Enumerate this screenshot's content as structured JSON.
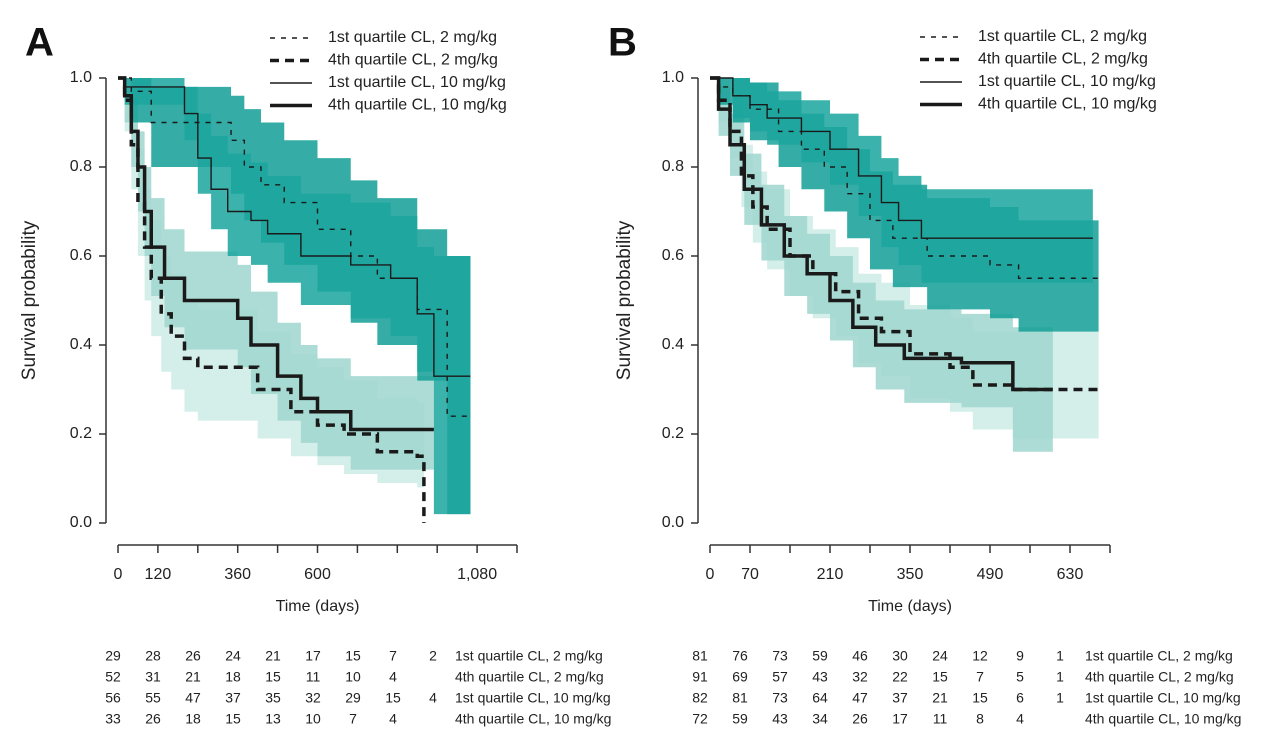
{
  "chart_data": [
    {
      "type": "line",
      "label": "A",
      "x_label": "Time (days)",
      "y_label": "Survival probability",
      "step": true,
      "xlim": [
        0,
        1200
      ],
      "ylim": [
        0,
        1
      ],
      "xticks": [
        0,
        120,
        360,
        600,
        {
          "value": 1080,
          "label": "1,080"
        }
      ],
      "minor_xticks": [
        240,
        480,
        720,
        840,
        960,
        1200
      ],
      "yticks": [
        {
          "value": 0,
          "label": "0.0"
        },
        0.2,
        0.4,
        0.6,
        0.8,
        {
          "value": 1,
          "label": "1.0"
        }
      ],
      "series": [
        {
          "name": "1st quartile CL, 2 mg/kg",
          "color": "#1a1a1a",
          "band_color": "#129f97",
          "dashed": true,
          "bold": false,
          "x": [
            0,
            40,
            100,
            340,
            380,
            430,
            500,
            600,
            700,
            780,
            900,
            990,
            1060
          ],
          "values": [
            1,
            0.97,
            0.9,
            0.86,
            0.8,
            0.76,
            0.72,
            0.66,
            0.6,
            0.55,
            0.48,
            0.24,
            0.24
          ],
          "lower": [
            1,
            0.9,
            0.8,
            0.74,
            0.68,
            0.63,
            0.58,
            0.52,
            0.45,
            0.4,
            0.32,
            0.02,
            0.02
          ],
          "upper": [
            1,
            1,
            0.98,
            0.96,
            0.93,
            0.9,
            0.86,
            0.82,
            0.77,
            0.73,
            0.66,
            0.6,
            0.6
          ]
        },
        {
          "name": "4th quartile CL, 2 mg/kg",
          "color": "#1a1a1a",
          "band_color": "#cdebe6",
          "dashed": true,
          "bold": true,
          "x": [
            0,
            20,
            40,
            60,
            80,
            100,
            130,
            160,
            200,
            240,
            420,
            520,
            600,
            680,
            780,
            900,
            920
          ],
          "values": [
            1,
            0.95,
            0.85,
            0.72,
            0.62,
            0.55,
            0.47,
            0.42,
            0.37,
            0.35,
            0.3,
            0.25,
            0.22,
            0.2,
            0.16,
            0.15,
            0
          ],
          "lower": [
            1,
            0.88,
            0.75,
            0.6,
            0.5,
            0.42,
            0.34,
            0.3,
            0.25,
            0.23,
            0.19,
            0.15,
            0.13,
            0.11,
            0.09,
            0.08,
            0
          ],
          "upper": [
            1,
            1,
            0.94,
            0.84,
            0.75,
            0.68,
            0.6,
            0.56,
            0.5,
            0.48,
            0.43,
            0.38,
            0.35,
            0.32,
            0.28,
            0.27,
            0
          ]
        },
        {
          "name": "1st quartile CL, 10 mg/kg",
          "color": "#1a1a1a",
          "band_color": "#1aa59d",
          "dashed": false,
          "bold": false,
          "x": [
            0,
            20,
            180,
            200,
            240,
            280,
            330,
            400,
            450,
            550,
            700,
            820,
            900,
            950,
            1060
          ],
          "values": [
            1,
            0.98,
            0.98,
            0.92,
            0.82,
            0.75,
            0.7,
            0.68,
            0.65,
            0.6,
            0.58,
            0.55,
            0.47,
            0.33,
            0.33
          ],
          "lower": [
            1,
            0.94,
            0.94,
            0.86,
            0.74,
            0.66,
            0.6,
            0.58,
            0.54,
            0.49,
            0.46,
            0.42,
            0.34,
            0.02,
            0.02
          ],
          "upper": [
            1,
            1,
            1,
            0.98,
            0.92,
            0.87,
            0.83,
            0.81,
            0.78,
            0.74,
            0.72,
            0.69,
            0.62,
            0.6,
            0.6
          ]
        },
        {
          "name": "4th quartile CL, 10 mg/kg",
          "color": "#1a1a1a",
          "band_color": "#9dd6ce",
          "dashed": false,
          "bold": true,
          "x": [
            0,
            20,
            40,
            60,
            80,
            100,
            140,
            200,
            360,
            400,
            480,
            550,
            600,
            700,
            950
          ],
          "values": [
            1,
            0.96,
            0.88,
            0.8,
            0.7,
            0.62,
            0.55,
            0.5,
            0.46,
            0.4,
            0.33,
            0.28,
            0.25,
            0.21,
            0.21
          ],
          "lower": [
            1,
            0.9,
            0.8,
            0.7,
            0.6,
            0.51,
            0.44,
            0.39,
            0.35,
            0.29,
            0.23,
            0.18,
            0.15,
            0.12,
            0.12
          ],
          "upper": [
            1,
            1,
            0.95,
            0.88,
            0.8,
            0.73,
            0.66,
            0.61,
            0.58,
            0.52,
            0.45,
            0.4,
            0.37,
            0.33,
            0.33
          ]
        }
      ],
      "risk_table": [
        [
          29,
          28,
          26,
          24,
          21,
          17,
          15,
          7,
          2
        ],
        [
          52,
          31,
          21,
          18,
          15,
          11,
          10,
          4,
          null
        ],
        [
          56,
          55,
          47,
          37,
          35,
          32,
          29,
          15,
          4
        ],
        [
          33,
          26,
          18,
          15,
          13,
          10,
          7,
          4,
          null
        ]
      ]
    },
    {
      "type": "line",
      "label": "B",
      "x_label": "Time (days)",
      "y_label": "Survival probability",
      "step": true,
      "xlim": [
        0,
        700
      ],
      "ylim": [
        0,
        1
      ],
      "xticks": [
        0,
        70,
        210,
        350,
        490,
        630
      ],
      "minor_xticks": [
        140,
        280,
        420,
        560,
        700
      ],
      "yticks": [
        {
          "value": 0,
          "label": "0.0"
        },
        0.2,
        0.4,
        0.6,
        0.8,
        {
          "value": 1,
          "label": "1.0"
        }
      ],
      "series": [
        {
          "name": "1st quartile CL, 2 mg/kg",
          "color": "#1a1a1a",
          "band_color": "#129f97",
          "dashed": true,
          "bold": false,
          "x": [
            0,
            15,
            40,
            70,
            120,
            160,
            200,
            240,
            280,
            320,
            380,
            490,
            540,
            680
          ],
          "values": [
            1,
            0.98,
            0.96,
            0.93,
            0.88,
            0.84,
            0.8,
            0.74,
            0.68,
            0.64,
            0.6,
            0.58,
            0.55,
            0.55
          ],
          "lower": [
            1,
            0.94,
            0.9,
            0.86,
            0.8,
            0.75,
            0.7,
            0.64,
            0.57,
            0.53,
            0.48,
            0.46,
            0.43,
            0.43
          ],
          "upper": [
            1,
            1,
            1,
            0.99,
            0.95,
            0.92,
            0.89,
            0.84,
            0.79,
            0.76,
            0.73,
            0.71,
            0.68,
            0.68
          ]
        },
        {
          "name": "4th quartile CL, 2 mg/kg",
          "color": "#1a1a1a",
          "band_color": "#cdebe6",
          "dashed": true,
          "bold": true,
          "x": [
            0,
            15,
            35,
            55,
            75,
            100,
            140,
            180,
            220,
            260,
            300,
            350,
            420,
            460,
            530,
            680
          ],
          "values": [
            1,
            0.95,
            0.88,
            0.78,
            0.71,
            0.66,
            0.6,
            0.56,
            0.52,
            0.46,
            0.43,
            0.38,
            0.35,
            0.31,
            0.3,
            0.3
          ],
          "lower": [
            1,
            0.9,
            0.82,
            0.71,
            0.63,
            0.57,
            0.51,
            0.46,
            0.42,
            0.36,
            0.33,
            0.28,
            0.25,
            0.21,
            0.19,
            0.19
          ],
          "upper": [
            1,
            1,
            0.94,
            0.85,
            0.79,
            0.75,
            0.69,
            0.66,
            0.62,
            0.56,
            0.54,
            0.49,
            0.46,
            0.43,
            0.43,
            0.43
          ]
        },
        {
          "name": "1st quartile CL, 10 mg/kg",
          "color": "#1a1a1a",
          "band_color": "#1aa59d",
          "dashed": false,
          "bold": false,
          "x": [
            0,
            30,
            40,
            70,
            100,
            160,
            210,
            260,
            300,
            330,
            370,
            670
          ],
          "values": [
            1,
            1,
            0.96,
            0.94,
            0.91,
            0.88,
            0.84,
            0.78,
            0.72,
            0.68,
            0.64,
            0.64
          ],
          "lower": [
            1,
            1,
            0.91,
            0.88,
            0.85,
            0.81,
            0.76,
            0.69,
            0.62,
            0.58,
            0.54,
            0.54
          ],
          "upper": [
            1,
            1,
            1,
            0.99,
            0.97,
            0.95,
            0.92,
            0.87,
            0.82,
            0.78,
            0.75,
            0.75
          ]
        },
        {
          "name": "4th quartile CL, 10 mg/kg",
          "color": "#1a1a1a",
          "band_color": "#9dd6ce",
          "dashed": false,
          "bold": true,
          "x": [
            0,
            15,
            35,
            60,
            90,
            130,
            170,
            210,
            250,
            290,
            340,
            440,
            530,
            600
          ],
          "values": [
            1,
            0.93,
            0.85,
            0.75,
            0.67,
            0.6,
            0.56,
            0.5,
            0.44,
            0.4,
            0.37,
            0.36,
            0.3,
            0.3
          ],
          "lower": [
            1,
            0.87,
            0.78,
            0.67,
            0.59,
            0.51,
            0.47,
            0.41,
            0.35,
            0.3,
            0.27,
            0.26,
            0.16,
            0.16
          ],
          "upper": [
            1,
            0.98,
            0.92,
            0.83,
            0.76,
            0.69,
            0.65,
            0.6,
            0.54,
            0.5,
            0.48,
            0.47,
            0.44,
            0.44
          ]
        }
      ],
      "risk_table": [
        [
          81,
          76,
          73,
          59,
          46,
          30,
          24,
          12,
          9,
          1
        ],
        [
          91,
          69,
          57,
          43,
          32,
          22,
          15,
          7,
          5,
          1
        ],
        [
          82,
          81,
          73,
          64,
          47,
          37,
          21,
          15,
          6,
          1
        ],
        [
          72,
          59,
          43,
          34,
          26,
          17,
          11,
          8,
          4,
          null
        ]
      ]
    }
  ]
}
